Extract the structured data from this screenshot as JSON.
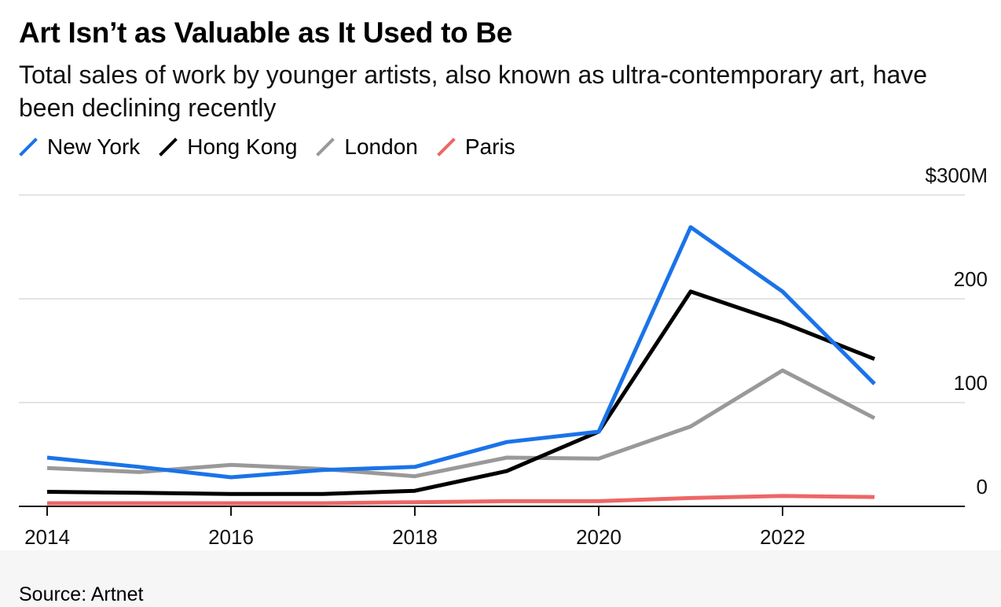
{
  "chart_data": {
    "type": "line",
    "title": "Art Isn’t as Valuable as It Used to Be",
    "subtitle": "Total sales of work by younger artists, also known as ultra-contemporary art, have been declining recently",
    "source": "Source: Artnet",
    "x": [
      2014,
      2015,
      2016,
      2017,
      2018,
      2019,
      2020,
      2021,
      2022,
      2023
    ],
    "x_ticks": [
      2014,
      2016,
      2018,
      2020,
      2022
    ],
    "x_tick_labels": [
      "2014",
      "2016",
      "2018",
      "2020",
      "2022"
    ],
    "ylim": [
      0,
      300
    ],
    "y_ticks": [
      0,
      100,
      200,
      300
    ],
    "y_tick_labels": [
      "0",
      "100",
      "200",
      "$300M"
    ],
    "grid": true,
    "legend_position": "top-left",
    "series": [
      {
        "name": "New York",
        "color": "#1a73e8",
        "values": [
          47,
          38,
          28,
          35,
          38,
          62,
          72,
          269,
          207,
          118
        ]
      },
      {
        "name": "Hong Kong",
        "color": "#000000",
        "values": [
          14,
          13,
          12,
          12,
          15,
          34,
          72,
          207,
          177,
          142
        ]
      },
      {
        "name": "London",
        "color": "#999999",
        "values": [
          37,
          33,
          40,
          36,
          29,
          47,
          46,
          77,
          131,
          85
        ]
      },
      {
        "name": "Paris",
        "color": "#ee6666",
        "values": [
          3,
          3,
          3,
          3,
          4,
          5,
          5,
          8,
          10,
          9
        ]
      }
    ]
  }
}
